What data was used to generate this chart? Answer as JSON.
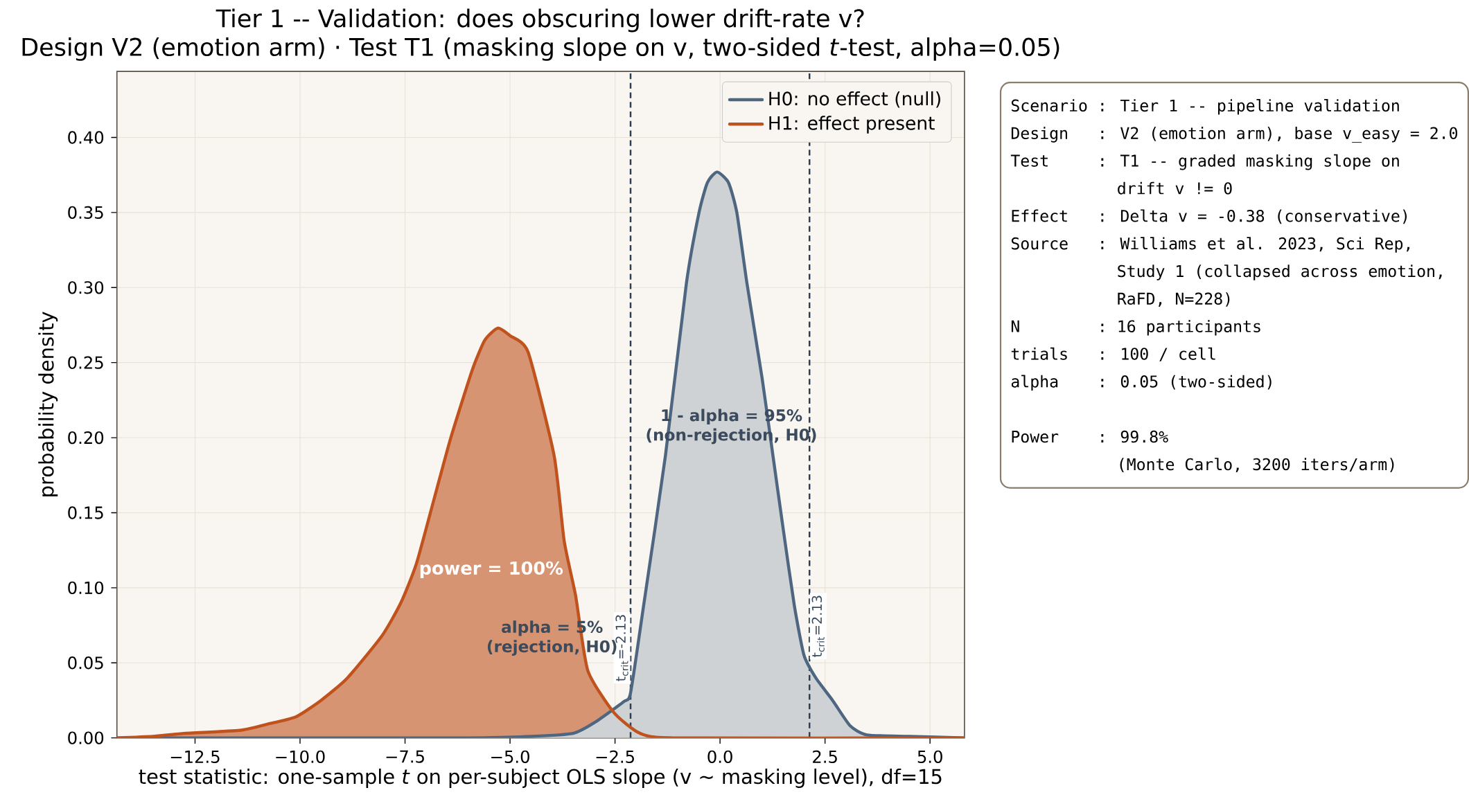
{
  "chart_data": {
    "type": "area",
    "title": "Tier 1 -- Validation: does obscuring lower drift-rate v?",
    "subtitle": "Design V2 (emotion arm) · Test T1 (masking slope on v, two-sided *t*-test, alpha=0.05)",
    "xlabel": "test statistic: one-sample *t* on per-subject OLS slope (v ~ masking level), df=15",
    "ylabel": "probability density",
    "series": [
      {
        "name": "H0: no effect (null)",
        "color": "#4e6680",
        "x": [
          -14.36,
          -6,
          -4.5,
          -3.5,
          -3.0,
          -2.3,
          -2.13,
          -1.82,
          -1.3,
          -0.8,
          -0.5,
          -0.3,
          -0.07,
          0.2,
          0.4,
          0.64,
          1.0,
          1.26,
          1.5,
          1.77,
          2.0,
          2.28,
          2.68,
          3.1,
          3.5,
          4.5,
          5.82
        ],
        "values": [
          0,
          0,
          0.001,
          0.003,
          0.01,
          0.024,
          0.03,
          0.088,
          0.188,
          0.303,
          0.35,
          0.37,
          0.377,
          0.37,
          0.35,
          0.303,
          0.24,
          0.188,
          0.14,
          0.088,
          0.055,
          0.04,
          0.025,
          0.008,
          0.002,
          0.001,
          0
        ]
      },
      {
        "name": "H1: effect present",
        "color": "#c0521e",
        "x": [
          -14.36,
          -13.5,
          -12.77,
          -11.44,
          -10.8,
          -10.1,
          -9.5,
          -8.87,
          -8.05,
          -7.6,
          -7.23,
          -6.8,
          -6.41,
          -5.9,
          -5.6,
          -5.29,
          -5.0,
          -4.57,
          -3.95,
          -3.71,
          -3.44,
          -3.15,
          -2.53,
          -1.9,
          -1.0,
          5.82
        ],
        "values": [
          0,
          0.001,
          0.003,
          0.005,
          0.009,
          0.014,
          0.025,
          0.04,
          0.068,
          0.09,
          0.116,
          0.16,
          0.2,
          0.245,
          0.265,
          0.273,
          0.268,
          0.257,
          0.188,
          0.131,
          0.095,
          0.045,
          0.017,
          0.003,
          0,
          0
        ]
      }
    ],
    "xlim": [
      -14.36,
      5.82
    ],
    "ylim": [
      0,
      0.444
    ],
    "xticks": [
      {
        "value": -12.5,
        "label": "−12.5"
      },
      {
        "value": -10,
        "label": "−10.0"
      },
      {
        "value": -7.5,
        "label": "−7.5"
      },
      {
        "value": -5,
        "label": "−5.0"
      },
      {
        "value": -2.5,
        "label": "−2.5"
      },
      {
        "value": 0,
        "label": "0.0"
      },
      {
        "value": 2.5,
        "label": "2.5"
      },
      {
        "value": 5,
        "label": "5.0"
      }
    ],
    "yticks": [
      {
        "value": 0,
        "label": "0.00"
      },
      {
        "value": 0.05,
        "label": "0.05"
      },
      {
        "value": 0.1,
        "label": "0.10"
      },
      {
        "value": 0.15,
        "label": "0.15"
      },
      {
        "value": 0.2,
        "label": "0.20"
      },
      {
        "value": 0.25,
        "label": "0.25"
      },
      {
        "value": 0.3,
        "label": "0.30"
      },
      {
        "value": 0.35,
        "label": "0.35"
      },
      {
        "value": 0.4,
        "label": "0.40"
      }
    ],
    "ref_lines": [
      {
        "axis": "x",
        "value": -2.13,
        "label": "t$_{crit}$=-2.13",
        "color": "#2e3e50",
        "line_style": "dashed"
      },
      {
        "axis": "x",
        "value": 2.13,
        "label": "t$_{crit}$=2.13",
        "color": "#2e3e50",
        "line_style": "dashed"
      }
    ],
    "annotations": [
      "power = 100%",
      "1 - alpha = 95%",
      "(non-rejection, H0)",
      "alpha = 5%",
      "(rejection, H0)",
      "Scenario : Tier 1 -- pipeline validation",
      "Design   : V2 (emotion arm), base v_easy = 2.0",
      "Test     : T1 -- graded masking slope on",
      "drift v != 0",
      "Effect   : Delta v = -0.38 (conservative)",
      "Source   : Williams et al. 2023, Sci Rep,",
      "Study 1 (collapsed across emotion,",
      "RaFD, N=228)",
      "N        : 16 participants",
      "trials   : 100 / cell",
      "alpha    : 0.05 (two-sided)",
      "Power    : 99.8%",
      "(Monte Carlo, 3200 iters/arm)"
    ],
    "grid": true,
    "legend": "top right"
  }
}
